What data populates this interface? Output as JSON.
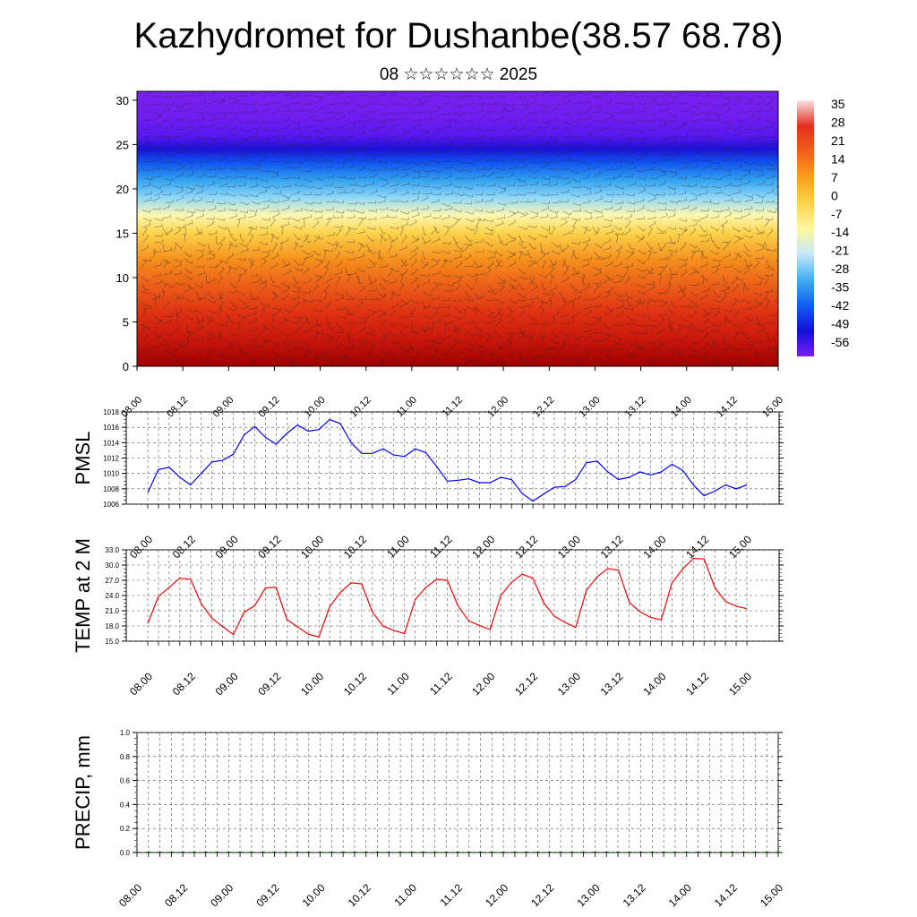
{
  "title": "Kazhydromet for Dushanbe(38.57 68.78)",
  "subtitle": "08 ☆☆☆☆☆☆ 2025",
  "time_labels": [
    "08.00",
    "08.12",
    "09.00",
    "09.12",
    "10.00",
    "10.12",
    "11.00",
    "11.12",
    "12.00",
    "12.12",
    "13.00",
    "13.12",
    "14.00",
    "14.12",
    "15.00"
  ],
  "chart_data": [
    {
      "type": "heatmap",
      "panel": "cross-section",
      "xlabels": [
        "08.00",
        "08.12",
        "09.00",
        "09.12",
        "10.00",
        "10.12",
        "11.00",
        "11.12",
        "12.00",
        "12.12",
        "13.00",
        "13.12",
        "14.00",
        "14.12",
        "15.00"
      ],
      "ylim": [
        0,
        31
      ],
      "yticks": [
        0,
        5,
        10,
        15,
        20,
        25,
        30
      ],
      "colorbar_labels": [
        "35",
        "28",
        "21",
        "14",
        "7",
        "0",
        "-7",
        "-14",
        "-21",
        "-28",
        "-35",
        "-42",
        "-49",
        "-56"
      ],
      "colorbar_stops": [
        "#fbe3e3",
        "#e0301e",
        "#f06018",
        "#f8a020",
        "#fcd24a",
        "#fef8a0",
        "#c8e8f8",
        "#40b0f0",
        "#1060f0",
        "#1010d0",
        "#7a20f0"
      ],
      "temperature_profile": {
        "heights": [
          0,
          3,
          6,
          9,
          12,
          15,
          17,
          19,
          21,
          23,
          24.5,
          26,
          28,
          31
        ],
        "values": [
          35,
          30,
          25,
          18,
          10,
          0,
          -7,
          -14,
          -24,
          -38,
          -50,
          -56,
          -60,
          -62
        ]
      },
      "wind_barbs": true,
      "grid": false
    },
    {
      "type": "line",
      "ylabel": "PMSL",
      "x_start": "08.00",
      "step_hours": 3,
      "values": [
        1007.5,
        1010.5,
        1010.8,
        1009.5,
        1008.5,
        1010,
        1011.5,
        1011.7,
        1012.5,
        1015,
        1016.1,
        1014.7,
        1013.8,
        1015.2,
        1016.3,
        1015.5,
        1015.7,
        1017,
        1016.5,
        1014,
        1012.6,
        1012.6,
        1013.2,
        1012.4,
        1012.2,
        1013.2,
        1012.7,
        1010.9,
        1009,
        1009.1,
        1009.3,
        1008.8,
        1008.8,
        1009.5,
        1009.2,
        1007.4,
        1006.4,
        1007.3,
        1008.2,
        1008.3,
        1009.2,
        1011.4,
        1011.6,
        1010.2,
        1009.2,
        1009.5,
        1010.2,
        1009.8,
        1010.2,
        1011.2,
        1010.4,
        1008.5,
        1007.1,
        1007.7,
        1008.5,
        1008,
        1008.5
      ],
      "ylim": [
        1006,
        1018
      ],
      "yticks": [
        "1006",
        "1008",
        "1010",
        "1012",
        "1014",
        "1016",
        "1018"
      ],
      "color": "#0000ff",
      "grid": true
    },
    {
      "type": "line",
      "ylabel": "TEMP at 2 M",
      "x_start": "08.00",
      "step_hours": 3,
      "values": [
        18.5,
        23.8,
        25.6,
        27.4,
        27.2,
        22.4,
        19.5,
        17.9,
        16.3,
        20.7,
        22,
        25.5,
        25.6,
        19.3,
        17.8,
        16.4,
        15.8,
        21.8,
        24.6,
        26.5,
        26.3,
        20.7,
        18,
        17.1,
        16.5,
        23.2,
        25.6,
        27.2,
        27,
        22,
        19,
        18.1,
        17.3,
        24,
        26.6,
        28.2,
        27.4,
        22.6,
        19.9,
        18.7,
        17.7,
        25,
        27.7,
        29.3,
        29,
        22.7,
        20.8,
        19.7,
        19.2,
        26.5,
        29.2,
        31.3,
        31.2,
        25.6,
        22.8,
        21.9,
        21.4
      ],
      "ylim": [
        15,
        33
      ],
      "yticks": [
        "15.0",
        "18.0",
        "21.0",
        "24.0",
        "27.0",
        "30.0",
        "33.0"
      ],
      "color": "#ff0000",
      "grid": true
    },
    {
      "type": "bar",
      "ylabel": "PRECIP, mm",
      "x_start": "08.00",
      "step_hours": 3,
      "values": [
        0,
        0,
        0,
        0,
        0,
        0,
        0,
        0,
        0,
        0,
        0,
        0,
        0,
        0,
        0,
        0,
        0,
        0,
        0,
        0,
        0,
        0,
        0,
        0,
        0,
        0,
        0,
        0,
        0,
        0,
        0,
        0,
        0,
        0,
        0,
        0,
        0,
        0,
        0,
        0,
        0,
        0,
        0,
        0,
        0,
        0,
        0,
        0,
        0,
        0,
        0,
        0,
        0,
        0,
        0,
        0,
        0
      ],
      "ylim": [
        0,
        1
      ],
      "yticks": [
        "0.0",
        "0.2",
        "0.4",
        "0.6",
        "0.8",
        "1.0"
      ],
      "color": "#006400",
      "grid": true
    }
  ]
}
